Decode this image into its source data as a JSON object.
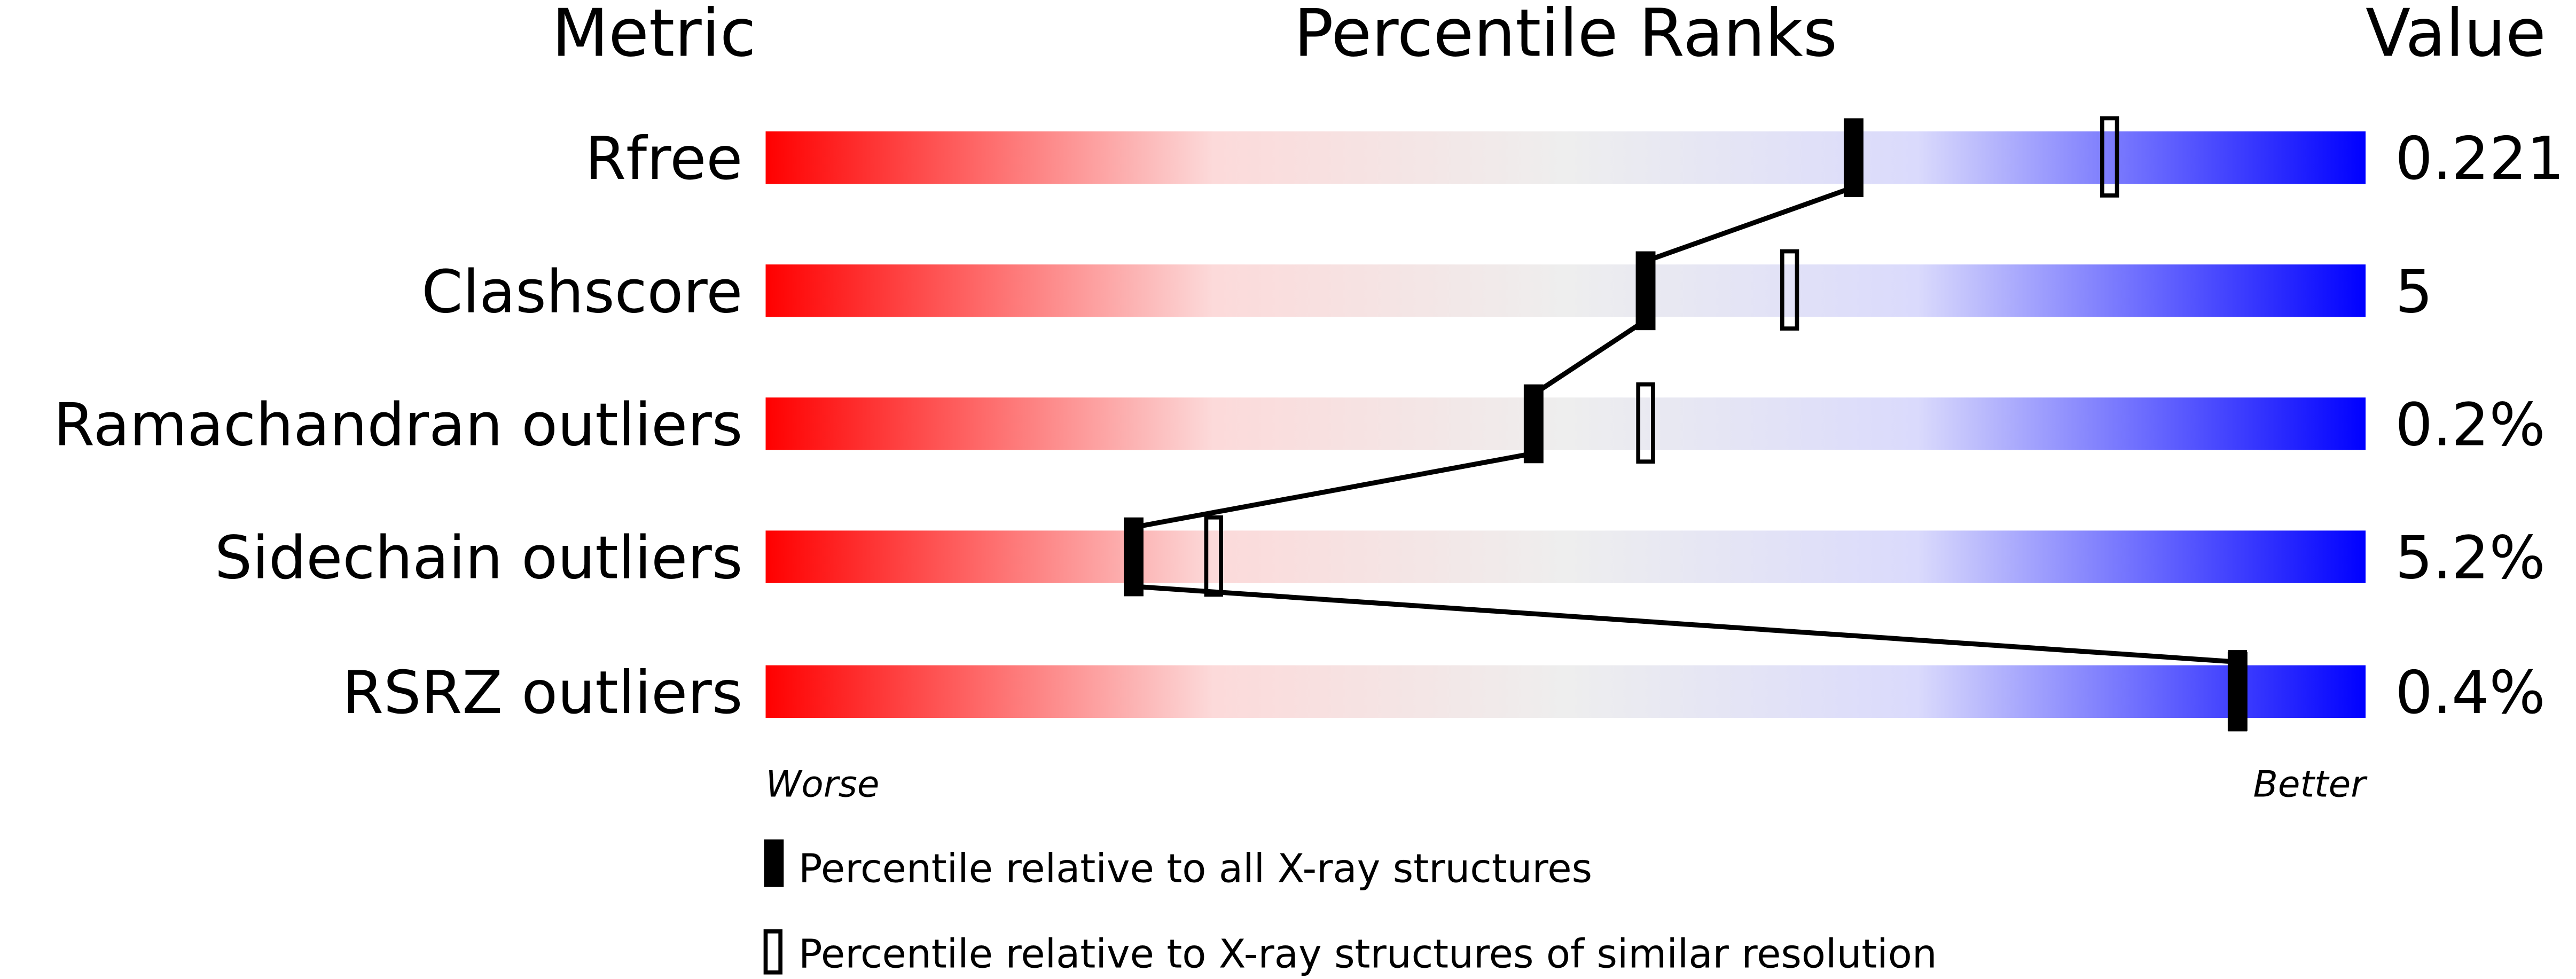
{
  "chart_data": {
    "type": "percentile-bar",
    "headers": {
      "metric": "Metric",
      "percentile": "Percentile Ranks",
      "value": "Value"
    },
    "axis": {
      "min": 0,
      "max": 100,
      "left_label": "Worse",
      "right_label": "Better"
    },
    "gradient_colors": [
      "#ff0000",
      "#eeeeee",
      "#0000ff"
    ],
    "rows": [
      {
        "metric": "Rfree",
        "value": "0.221",
        "percentile_all": 68,
        "percentile_similar": 84
      },
      {
        "metric": "Clashscore",
        "value": "5",
        "percentile_all": 55,
        "percentile_similar": 64
      },
      {
        "metric": "Ramachandran outliers",
        "value": "0.2%",
        "percentile_all": 48,
        "percentile_similar": 55
      },
      {
        "metric": "Sidechain outliers",
        "value": "5.2%",
        "percentile_all": 23,
        "percentile_similar": 28
      },
      {
        "metric": "RSRZ outliers",
        "value": "0.4%",
        "percentile_all": 92,
        "percentile_similar": 92
      }
    ],
    "legend": [
      {
        "marker": "filled",
        "label": "Percentile relative to all X-ray structures"
      },
      {
        "marker": "open",
        "label": "Percentile relative to X-ray structures of similar resolution"
      }
    ]
  }
}
